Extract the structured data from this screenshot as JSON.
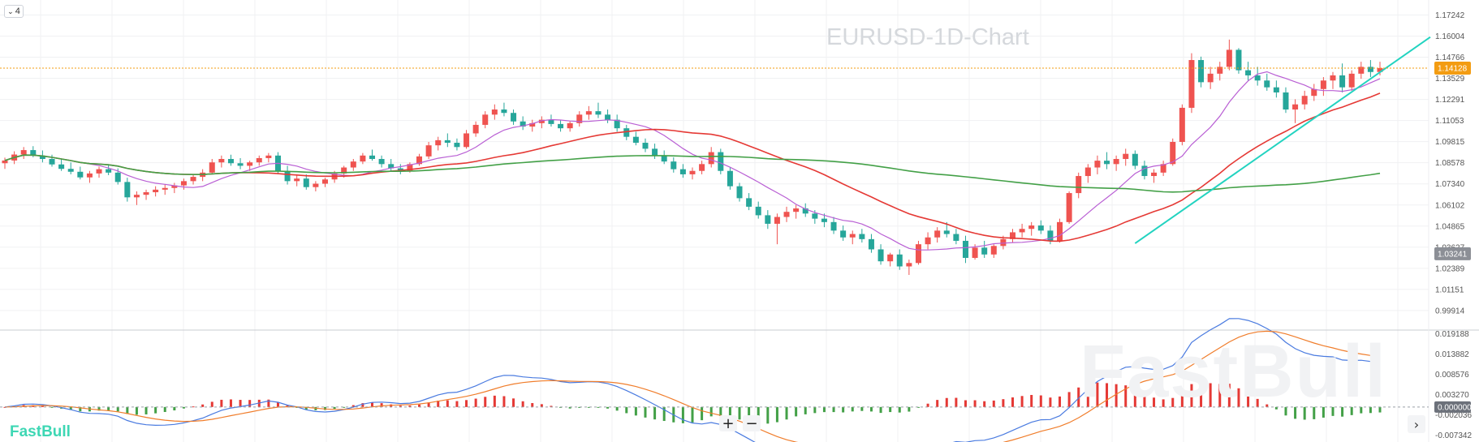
{
  "indicator_count": "4",
  "title": "EURUSD-1D-Chart",
  "brand": "FastBull",
  "brand_watermark": "FastBull",
  "zoom": {
    "in": "+",
    "out": "−"
  },
  "colors": {
    "up": "#ef5350",
    "down": "#26a69a",
    "ma_fast": "#b95fd4",
    "ma_mid": "#e53935",
    "ma_slow": "#43a047",
    "trend": "#22d3c0",
    "macd": "#4a7be0",
    "signal": "#f07d2b",
    "hist_up": "#e53935",
    "hist_down": "#43a047",
    "price_tag": "#f39c12",
    "tag_gray": "#8c8f96"
  },
  "chart_data": [
    {
      "type": "candlestick",
      "title": "EURUSD-1D-Chart",
      "y_ticks": [
        "1.17242",
        "1.16004",
        "1.14766",
        "1.13529",
        "1.12291",
        "1.11053",
        "1.09815",
        "1.08578",
        "1.07340",
        "1.06102",
        "1.04865",
        "1.03627",
        "1.02389",
        "1.01151",
        "0.99914"
      ],
      "ylim": [
        0.9891,
        1.1774
      ],
      "current_price": "1.14128",
      "secondary_price": "1.03241",
      "candles": [
        [
          1.0855,
          1.0888,
          1.0822,
          1.0871
        ],
        [
          1.0871,
          1.0925,
          1.085,
          1.0906
        ],
        [
          1.0906,
          1.095,
          1.088,
          1.0932
        ],
        [
          1.0932,
          1.0955,
          1.089,
          1.09
        ],
        [
          1.09,
          1.093,
          1.086,
          1.088
        ],
        [
          1.088,
          1.0905,
          1.0835,
          1.0848
        ],
        [
          1.0848,
          1.088,
          1.081,
          1.0822
        ],
        [
          1.0822,
          1.086,
          1.079,
          1.0805
        ],
        [
          1.0805,
          1.0835,
          1.076,
          1.0772
        ],
        [
          1.0772,
          1.081,
          1.074,
          1.0795
        ],
        [
          1.0795,
          1.0835,
          1.077,
          1.082
        ],
        [
          1.082,
          1.085,
          1.0785,
          1.08
        ],
        [
          1.08,
          1.0825,
          1.073,
          1.0745
        ],
        [
          1.0745,
          1.077,
          1.063,
          1.0655
        ],
        [
          1.0655,
          1.069,
          1.061,
          1.067
        ],
        [
          1.067,
          1.07,
          1.064,
          1.0685
        ],
        [
          1.0685,
          1.072,
          1.066,
          1.07
        ],
        [
          1.07,
          1.073,
          1.067,
          1.071
        ],
        [
          1.071,
          1.074,
          1.068,
          1.0725
        ],
        [
          1.0725,
          1.0765,
          1.07,
          1.075
        ],
        [
          1.075,
          1.079,
          1.073,
          1.0775
        ],
        [
          1.0775,
          1.082,
          1.075,
          1.08
        ],
        [
          1.08,
          1.088,
          1.079,
          1.086
        ],
        [
          1.086,
          1.09,
          1.083,
          1.088
        ],
        [
          1.088,
          1.0905,
          1.084,
          1.0855
        ],
        [
          1.0855,
          1.0885,
          1.082,
          1.084
        ],
        [
          1.084,
          1.087,
          1.081,
          1.086
        ],
        [
          1.086,
          1.09,
          1.084,
          1.0885
        ],
        [
          1.0885,
          1.0915,
          1.086,
          1.09
        ],
        [
          1.09,
          1.092,
          1.079,
          1.081
        ],
        [
          1.081,
          1.084,
          1.073,
          1.075
        ],
        [
          1.075,
          1.079,
          1.072,
          1.0765
        ],
        [
          1.0765,
          1.079,
          1.07,
          1.0715
        ],
        [
          1.0715,
          1.075,
          1.069,
          1.0735
        ],
        [
          1.0735,
          1.077,
          1.0715,
          1.076
        ],
        [
          1.076,
          1.081,
          1.074,
          1.0795
        ],
        [
          1.0795,
          1.084,
          1.077,
          1.083
        ],
        [
          1.083,
          1.088,
          1.081,
          1.0865
        ],
        [
          1.0865,
          1.0915,
          1.085,
          1.09
        ],
        [
          1.09,
          1.0935,
          1.087,
          1.088
        ],
        [
          1.088,
          1.09,
          1.083,
          1.085
        ],
        [
          1.085,
          1.088,
          1.081,
          1.0825
        ],
        [
          1.0825,
          1.085,
          1.079,
          1.081
        ],
        [
          1.081,
          1.086,
          1.08,
          1.085
        ],
        [
          1.085,
          1.091,
          1.084,
          1.0895
        ],
        [
          1.0895,
          1.098,
          1.088,
          1.096
        ],
        [
          1.096,
          1.101,
          1.093,
          1.099
        ],
        [
          1.099,
          1.103,
          1.095,
          1.0975
        ],
        [
          1.0975,
          1.1,
          1.093,
          1.095
        ],
        [
          1.095,
          1.105,
          1.094,
          1.103
        ],
        [
          1.103,
          1.11,
          1.101,
          1.108
        ],
        [
          1.108,
          1.116,
          1.106,
          1.114
        ],
        [
          1.114,
          1.12,
          1.111,
          1.117
        ],
        [
          1.117,
          1.121,
          1.113,
          1.115
        ],
        [
          1.115,
          1.117,
          1.108,
          1.11
        ],
        [
          1.11,
          1.113,
          1.105,
          1.107
        ],
        [
          1.107,
          1.111,
          1.104,
          1.109
        ],
        [
          1.109,
          1.113,
          1.106,
          1.111
        ],
        [
          1.111,
          1.114,
          1.107,
          1.1085
        ],
        [
          1.1085,
          1.111,
          1.104,
          1.106
        ],
        [
          1.106,
          1.11,
          1.104,
          1.109
        ],
        [
          1.109,
          1.116,
          1.107,
          1.114
        ],
        [
          1.114,
          1.119,
          1.111,
          1.116
        ],
        [
          1.116,
          1.121,
          1.112,
          1.114
        ],
        [
          1.114,
          1.117,
          1.109,
          1.111
        ],
        [
          1.111,
          1.114,
          1.104,
          1.106
        ],
        [
          1.106,
          1.108,
          1.099,
          1.101
        ],
        [
          1.101,
          1.104,
          1.096,
          1.0975
        ],
        [
          1.0975,
          1.1,
          1.092,
          1.094
        ],
        [
          1.094,
          1.097,
          1.088,
          1.09
        ],
        [
          1.09,
          1.093,
          1.085,
          1.0865
        ],
        [
          1.0865,
          1.089,
          1.08,
          1.082
        ],
        [
          1.082,
          1.085,
          1.077,
          1.079
        ],
        [
          1.079,
          1.083,
          1.076,
          1.081
        ],
        [
          1.081,
          1.087,
          1.079,
          1.085
        ],
        [
          1.085,
          1.095,
          1.083,
          1.092
        ],
        [
          1.092,
          1.094,
          1.079,
          1.081
        ],
        [
          1.081,
          1.083,
          1.07,
          1.072
        ],
        [
          1.072,
          1.074,
          1.063,
          1.065
        ],
        [
          1.065,
          1.068,
          1.058,
          1.06
        ],
        [
          1.06,
          1.063,
          1.053,
          1.055
        ],
        [
          1.055,
          1.058,
          1.047,
          1.05
        ],
        [
          1.05,
          1.056,
          1.038,
          1.054
        ],
        [
          1.054,
          1.06,
          1.051,
          1.057
        ],
        [
          1.057,
          1.061,
          1.053,
          1.059
        ],
        [
          1.059,
          1.062,
          1.054,
          1.056
        ],
        [
          1.056,
          1.058,
          1.05,
          1.053
        ],
        [
          1.053,
          1.056,
          1.048,
          1.051
        ],
        [
          1.051,
          1.054,
          1.044,
          1.046
        ],
        [
          1.046,
          1.049,
          1.04,
          1.042
        ],
        [
          1.042,
          1.046,
          1.038,
          1.044
        ],
        [
          1.044,
          1.047,
          1.039,
          1.041
        ],
        [
          1.041,
          1.044,
          1.033,
          1.035
        ],
        [
          1.035,
          1.038,
          1.026,
          1.028
        ],
        [
          1.028,
          1.033,
          1.025,
          1.032
        ],
        [
          1.032,
          1.035,
          1.023,
          1.025
        ],
        [
          1.025,
          1.029,
          1.02,
          1.027
        ],
        [
          1.027,
          1.04,
          1.026,
          1.038
        ],
        [
          1.038,
          1.045,
          1.035,
          1.042
        ],
        [
          1.042,
          1.048,
          1.039,
          1.046
        ],
        [
          1.046,
          1.051,
          1.042,
          1.044
        ],
        [
          1.044,
          1.047,
          1.038,
          1.04
        ],
        [
          1.04,
          1.043,
          1.027,
          1.03
        ],
        [
          1.03,
          1.038,
          1.029,
          1.036
        ],
        [
          1.036,
          1.04,
          1.03,
          1.032
        ],
        [
          1.032,
          1.038,
          1.03,
          1.037
        ],
        [
          1.037,
          1.043,
          1.035,
          1.041
        ],
        [
          1.041,
          1.047,
          1.039,
          1.045
        ],
        [
          1.045,
          1.05,
          1.042,
          1.047
        ],
        [
          1.047,
          1.051,
          1.043,
          1.049
        ],
        [
          1.049,
          1.052,
          1.044,
          1.046
        ],
        [
          1.046,
          1.049,
          1.038,
          1.04
        ],
        [
          1.04,
          1.053,
          1.039,
          1.051
        ],
        [
          1.051,
          1.069,
          1.05,
          1.068
        ],
        [
          1.068,
          1.08,
          1.065,
          1.078
        ],
        [
          1.078,
          1.085,
          1.074,
          1.083
        ],
        [
          1.083,
          1.09,
          1.079,
          1.087
        ],
        [
          1.087,
          1.092,
          1.082,
          1.085
        ],
        [
          1.085,
          1.09,
          1.081,
          1.088
        ],
        [
          1.088,
          1.094,
          1.084,
          1.091
        ],
        [
          1.091,
          1.093,
          1.082,
          1.084
        ],
        [
          1.084,
          1.087,
          1.076,
          1.078
        ],
        [
          1.078,
          1.082,
          1.074,
          1.08
        ],
        [
          1.08,
          1.087,
          1.078,
          1.085
        ],
        [
          1.085,
          1.1,
          1.084,
          1.098
        ],
        [
          1.098,
          1.12,
          1.096,
          1.118
        ],
        [
          1.118,
          1.15,
          1.115,
          1.146
        ],
        [
          1.146,
          1.148,
          1.13,
          1.133
        ],
        [
          1.133,
          1.142,
          1.129,
          1.138
        ],
        [
          1.138,
          1.145,
          1.134,
          1.142
        ],
        [
          1.142,
          1.158,
          1.14,
          1.152
        ],
        [
          1.152,
          1.153,
          1.138,
          1.14
        ],
        [
          1.14,
          1.145,
          1.134,
          1.137
        ],
        [
          1.137,
          1.142,
          1.131,
          1.134
        ],
        [
          1.134,
          1.138,
          1.128,
          1.13
        ],
        [
          1.13,
          1.134,
          1.124,
          1.127
        ],
        [
          1.127,
          1.13,
          1.115,
          1.117
        ],
        [
          1.117,
          1.123,
          1.109,
          1.12
        ],
        [
          1.12,
          1.128,
          1.117,
          1.125
        ],
        [
          1.125,
          1.132,
          1.122,
          1.129
        ],
        [
          1.129,
          1.136,
          1.125,
          1.134
        ],
        [
          1.134,
          1.139,
          1.129,
          1.137
        ],
        [
          1.137,
          1.144,
          1.127,
          1.13
        ],
        [
          1.13,
          1.14,
          1.128,
          1.138
        ],
        [
          1.138,
          1.145,
          1.135,
          1.142
        ],
        [
          1.142,
          1.146,
          1.136,
          1.139
        ],
        [
          1.139,
          1.145,
          1.137,
          1.1413
        ]
      ]
    },
    {
      "type": "macd",
      "y_ticks": [
        "0.019188",
        "0.013882",
        "0.008576",
        "0.003270",
        "0.000000",
        "-0.002036",
        "-0.007342"
      ],
      "ylim": [
        -0.0081,
        0.0195
      ],
      "current_value": "0.000000"
    }
  ]
}
